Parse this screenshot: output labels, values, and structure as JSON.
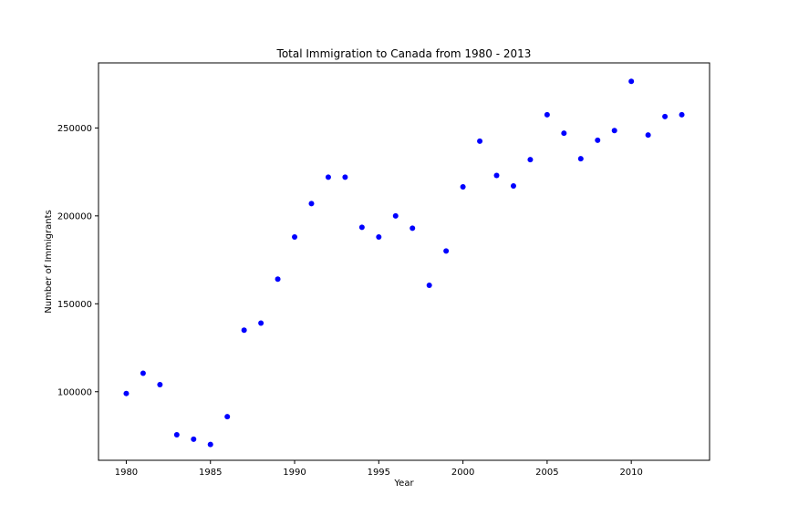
{
  "chart_data": {
    "type": "scatter",
    "title": "Total Immigration to Canada from 1980 - 2013",
    "xlabel": "Year",
    "ylabel": "Number of Immigrants",
    "xlim": [
      1978.35,
      2014.65
    ],
    "ylim": [
      61000,
      287000
    ],
    "xticks": [
      1980,
      1985,
      1990,
      1995,
      2000,
      2005,
      2010
    ],
    "yticks": [
      100000,
      150000,
      200000,
      250000
    ],
    "xtick_labels": [
      "1980",
      "1985",
      "1990",
      "1995",
      "2000",
      "2005",
      "2010"
    ],
    "ytick_labels": [
      "100000",
      "150000",
      "200000",
      "250000"
    ],
    "grid": false,
    "legend": "none",
    "marker_color": "#0000ff",
    "series": [
      {
        "x": [
          1980,
          1981,
          1982,
          1983,
          1984,
          1985,
          1986,
          1987,
          1988,
          1989,
          1990,
          1991,
          1992,
          1993,
          1994,
          1995,
          1996,
          1997,
          1998,
          1999,
          2000,
          2001,
          2002,
          2003,
          2004,
          2005,
          2006,
          2007,
          2008,
          2009,
          2010,
          2011,
          2012,
          2013
        ],
        "y": [
          99000,
          110500,
          104000,
          75500,
          73000,
          70000,
          85800,
          135000,
          139000,
          164000,
          188000,
          207000,
          222000,
          222000,
          193500,
          188000,
          200000,
          193000,
          160500,
          180000,
          216500,
          242500,
          223000,
          217000,
          232000,
          257500,
          247000,
          232500,
          243000,
          248500,
          276500,
          246000,
          256500,
          257500
        ]
      }
    ]
  }
}
